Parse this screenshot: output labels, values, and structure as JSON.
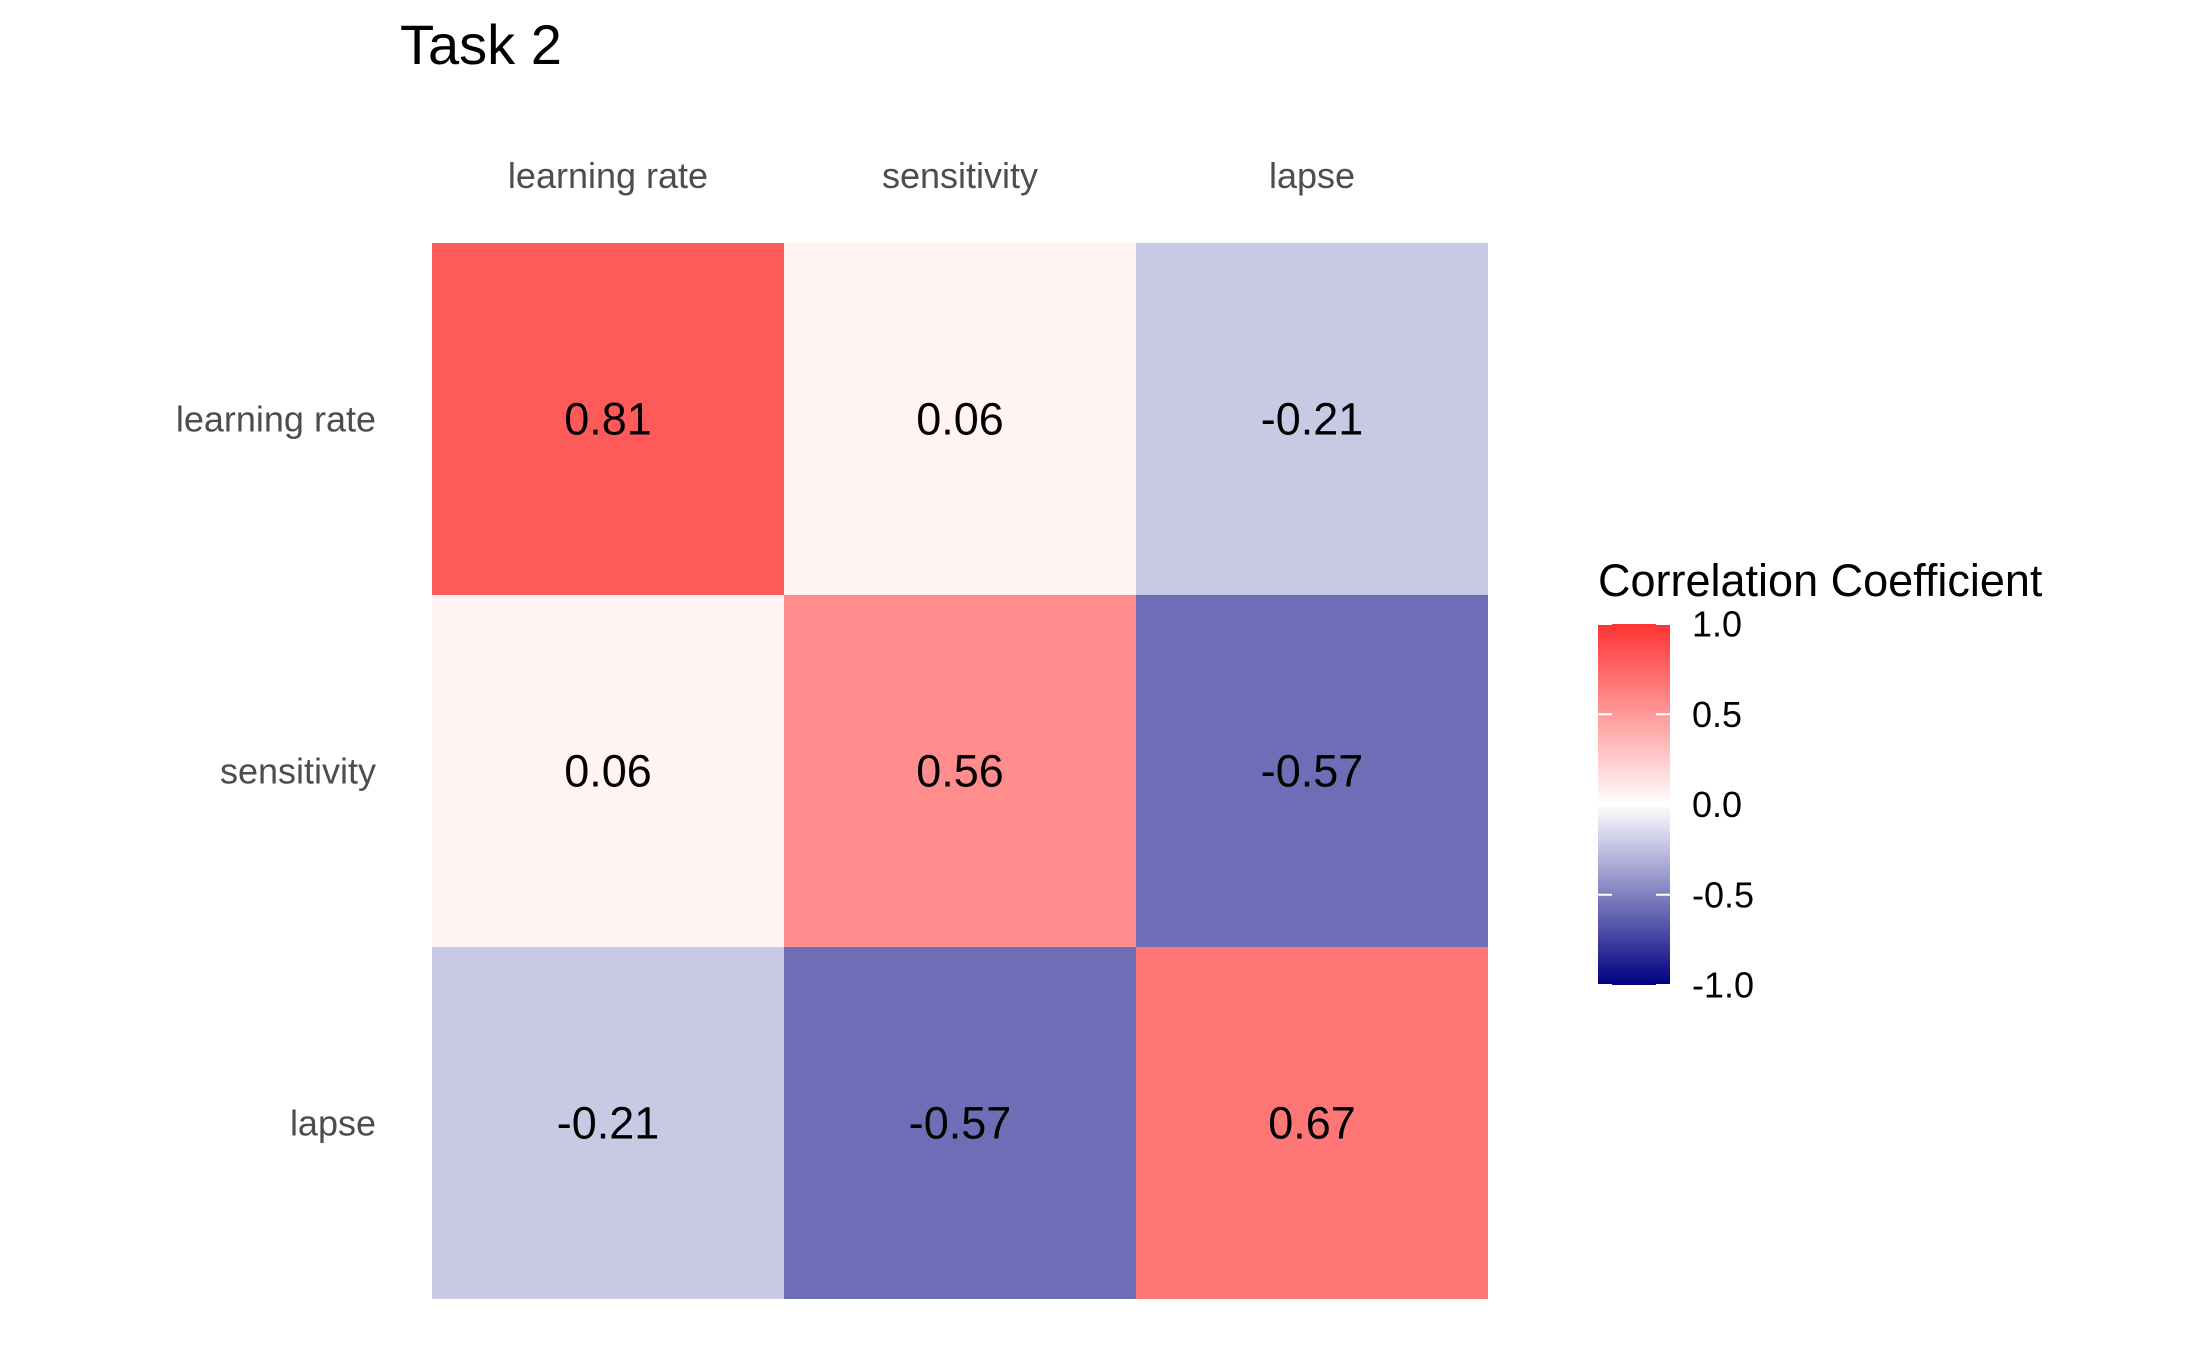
{
  "chart_data": {
    "type": "heatmap",
    "title": "Task 2",
    "x_categories": [
      "learning rate",
      "sensitivity",
      "lapse"
    ],
    "y_categories": [
      "learning rate",
      "sensitivity",
      "lapse"
    ],
    "values": [
      [
        0.81,
        0.06,
        -0.21
      ],
      [
        0.06,
        0.56,
        -0.57
      ],
      [
        -0.21,
        -0.57,
        0.67
      ]
    ],
    "cell_labels": [
      [
        "0.81",
        "0.06",
        "-0.21"
      ],
      [
        "0.06",
        "0.56",
        "-0.57"
      ],
      [
        "-0.21",
        "-0.57",
        "0.67"
      ]
    ],
    "x_axis_position": "top",
    "legend": {
      "title": "Correlation Coefficient",
      "placement": "right",
      "range": [
        -1.0,
        1.0
      ],
      "ticks": [
        1.0,
        0.5,
        0.0,
        -0.5,
        -1.0
      ],
      "tick_labels": [
        "1.0",
        "0.5",
        "0.0",
        "-0.5",
        "-1.0"
      ]
    },
    "color_scale": {
      "low": "#000080",
      "mid": "#ffffff",
      "high": "#ff3333"
    },
    "grid": false
  }
}
